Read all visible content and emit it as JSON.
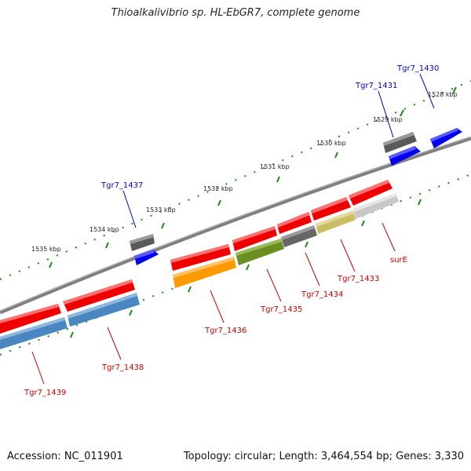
{
  "title": "Thioalkalivibrio sp. HL-EbGR7, complete genome",
  "footer": {
    "accession": "Accession: NC_011901",
    "stats": "Topology: circular; Length: 3,464,554 bp; Genes: 3,330"
  },
  "colors": {
    "backbone": "#808080",
    "tick": "#1b8a1b",
    "cds_red": "#ee0000",
    "trna_blue": "#0000ee",
    "grey": "#666666",
    "steel": "#4a86c0",
    "orange": "#ff9900",
    "olive": "#6b8e23",
    "khaki": "#c9bf62",
    "light_grey": "#c8c8c8",
    "label_red": "#cc0000",
    "label_blue": "#0000cc"
  },
  "kbp_labels": [
    "1528 kbp",
    "1529 kbp",
    "1530 kbp",
    "1531 kbp",
    "1532 kbp",
    "1533 kbp",
    "1534 kbp",
    "1535 kbp"
  ],
  "gene_labels_top": [
    "Tgr7_1430",
    "Tgr7_1431",
    "Tgr7_1437"
  ],
  "gene_labels_bottom": [
    "surE",
    "Tgr7_1433",
    "Tgr7_1434",
    "Tgr7_1435",
    "Tgr7_1436",
    "Tgr7_1438",
    "Tgr7_1439"
  ]
}
